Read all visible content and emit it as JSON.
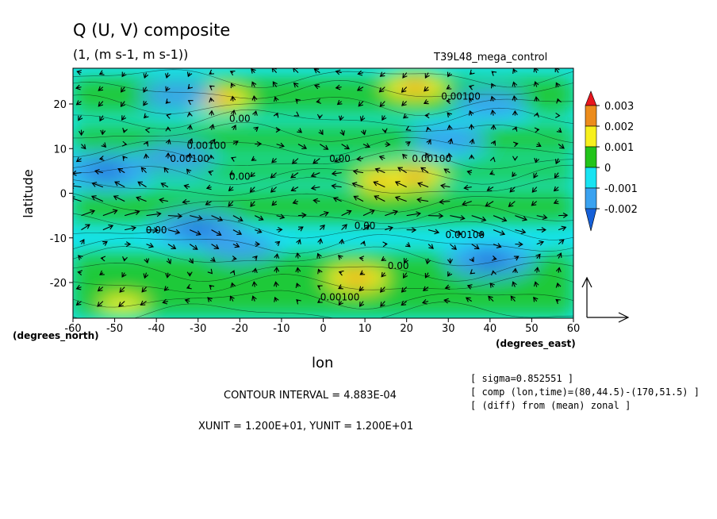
{
  "chart_data": {
    "type": "contour",
    "title": "Q (U, V) composite",
    "subtitle": "(1, (m s-1, m s-1))",
    "run_label": "T39L48_mega_control",
    "xlabel": "lon",
    "ylabel": "latitude",
    "x_unit_label": "(degrees_east)",
    "y_unit_label": "(degrees_north)",
    "x_ticks": [
      "-60",
      "-50",
      "-40",
      "-30",
      "-20",
      "-10",
      "0",
      "10",
      "20",
      "30",
      "40",
      "50",
      "60"
    ],
    "y_ticks": [
      "20",
      "10",
      "0",
      "-10",
      "-20"
    ],
    "xlim": [
      -60,
      60
    ],
    "ylim": [
      -28,
      28
    ],
    "colorbar": {
      "labels": [
        "0.003",
        "0.002",
        "0.001",
        "0",
        "-0.001",
        "-0.002"
      ],
      "colors": [
        "#e8161e",
        "#ec8c1c",
        "#f7f01d",
        "#22c41a",
        "#18e3f2",
        "#3aa2f0",
        "#1660d8"
      ]
    },
    "contour_labels": [
      {
        "text": "0.00",
        "lon": -20,
        "lat": 16
      },
      {
        "text": "0.00100",
        "lon": -28,
        "lat": 10
      },
      {
        "text": "0.00100",
        "lon": -32,
        "lat": 7
      },
      {
        "text": "0.00",
        "lon": -20,
        "lat": 3
      },
      {
        "text": "0.00",
        "lon": 4,
        "lat": 7
      },
      {
        "text": "0.00100",
        "lon": 26,
        "lat": 7
      },
      {
        "text": "0.00100",
        "lon": 33,
        "lat": 21
      },
      {
        "text": "0.00",
        "lon": -40,
        "lat": -9
      },
      {
        "text": "0.00",
        "lon": 10,
        "lat": -8
      },
      {
        "text": "0.00100",
        "lon": 34,
        "lat": -10
      },
      {
        "text": "0.00",
        "lon": 18,
        "lat": -17
      },
      {
        "text": "0.00100",
        "lon": 4,
        "lat": -24
      }
    ],
    "features": [
      {
        "lon": -25,
        "lat": 21,
        "level": 2
      },
      {
        "lon": 22,
        "lat": 24,
        "level": 2
      },
      {
        "lon": 15,
        "lat": 3,
        "level": 2
      },
      {
        "lon": 22,
        "lat": 4,
        "level": 2
      },
      {
        "lon": 8,
        "lat": -19,
        "level": 2
      },
      {
        "lon": -48,
        "lat": -25,
        "level": 1
      },
      {
        "lon": -52,
        "lat": 5,
        "level": -2
      },
      {
        "lon": -35,
        "lat": 8,
        "level": -1
      },
      {
        "lon": -30,
        "lat": -8,
        "level": -2
      },
      {
        "lon": -20,
        "lat": -12,
        "level": -1
      },
      {
        "lon": 40,
        "lat": -15,
        "level": -2
      },
      {
        "lon": 30,
        "lat": 12,
        "level": -1
      },
      {
        "lon": -35,
        "lat": 22,
        "level": -1
      },
      {
        "lon": 40,
        "lat": 20,
        "level": -1
      }
    ],
    "vector_scale_label": "XUNIT = 1.200E+01, YUNIT = 1.200E+01"
  },
  "info": {
    "contour_interval": "CONTOUR INTERVAL = 4.883E-04",
    "lines": [
      "[ sigma=0.852551 ]",
      "[ comp (lon,time)=(80,44.5)-(170,51.5) ]",
      "[ (diff) from (mean) zonal ]"
    ]
  }
}
